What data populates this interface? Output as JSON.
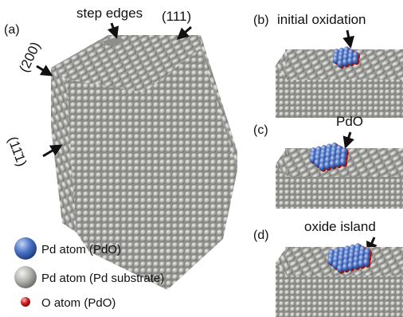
{
  "panels": {
    "a": {
      "label": "(a)",
      "annotations": {
        "step_edges": "step edges",
        "facet_111_top": "(111)",
        "facet_200": "(200)",
        "facet_111_bar": "(11̄1)"
      }
    },
    "b": {
      "label": "(b)",
      "annotation": "initial oxidation"
    },
    "c": {
      "label": "(c)",
      "annotation": "PdO"
    },
    "d": {
      "label": "(d)",
      "annotation": "oxide island"
    }
  },
  "legend": [
    {
      "label": "Pd atom (PdO)",
      "color": "#4a72c4"
    },
    {
      "label": "Pd atom (Pd substrate)",
      "color": "#9a9a96"
    },
    {
      "label": "O atom (PdO)",
      "color": "#d42020"
    }
  ],
  "colors": {
    "pd_substrate": "#a3a39f",
    "pd_oxide": "#4a72c4",
    "oxygen": "#d42020",
    "arrow": "#111111"
  }
}
